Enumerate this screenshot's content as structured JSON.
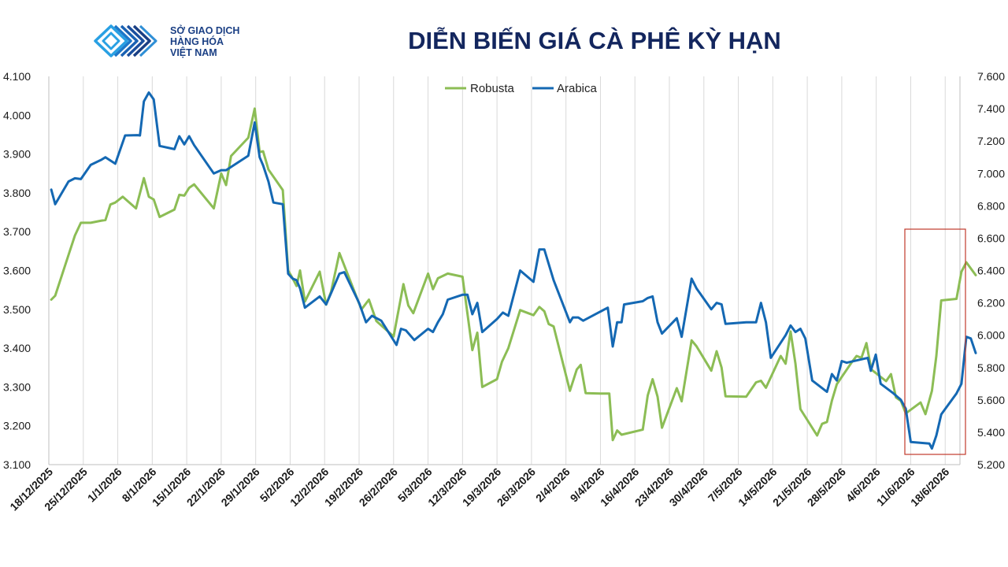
{
  "logo": {
    "line1": "SỞ GIAO DỊCH",
    "line2": "HÀNG HÓA",
    "line3": "VIỆT NAM",
    "mark": "chevron-logo-icon"
  },
  "colors": {
    "robusta": "#8cbd55",
    "arabica": "#1468b3",
    "title": "#13265e",
    "highlight": "#c0392b",
    "grid": "#d9d9d9"
  },
  "chart_data": {
    "type": "line",
    "title": "DIỄN BIẾN GIÁ CÀ PHÊ KỲ HẠN",
    "xlabel": "",
    "ylabel": "",
    "y_left": {
      "min": 3100,
      "max": 4100,
      "step": 100,
      "tick_labels": [
        "3.100",
        "3.200",
        "3.300",
        "3.400",
        "3.500",
        "3.600",
        "3.700",
        "3.800",
        "3.900",
        "4.000",
        "4.100"
      ]
    },
    "y_right": {
      "min": 5200,
      "max": 7600,
      "step": 200,
      "tick_labels": [
        "5.200",
        "5.400",
        "5.600",
        "5.800",
        "6.000",
        "6.200",
        "6.400",
        "6.600",
        "6.800",
        "7.000",
        "7.200",
        "7.400",
        "7.600"
      ]
    },
    "x_range_days": [
      0,
      185
    ],
    "x_ticks": [
      "18/12/2025",
      "25/12/2025",
      "1/1/2026",
      "8/1/2026",
      "15/1/2026",
      "22/1/2026",
      "29/1/2026",
      "5/2/2026",
      "12/2/2026",
      "19/2/2026",
      "26/2/2026",
      "5/3/2026",
      "12/3/2026",
      "19/3/2026",
      "26/3/2026",
      "2/4/2026",
      "9/4/2026",
      "16/4/2026",
      "23/4/2026",
      "30/4/2026",
      "7/5/2026",
      "14/5/2026",
      "21/5/2026",
      "28/5/2026",
      "4/6/2026",
      "11/6/2026",
      "18/6/2026"
    ],
    "legend": {
      "placement": "top-center"
    },
    "grid": {
      "vertical": true,
      "horizontal": false
    },
    "series": [
      {
        "name": "Robusta",
        "axis": "left",
        "color": "#8cbd55",
        "points": [
          [
            0.5,
            3525
          ],
          [
            1.3,
            3535
          ],
          [
            4,
            3640
          ],
          [
            5.3,
            3690
          ],
          [
            6.5,
            3723
          ],
          [
            7.5,
            3723
          ],
          [
            8.5,
            3723
          ],
          [
            10.5,
            3728
          ],
          [
            11.5,
            3730
          ],
          [
            12.5,
            3770
          ],
          [
            13.5,
            3775
          ],
          [
            15,
            3790
          ],
          [
            17.7,
            3760
          ],
          [
            19.3,
            3838
          ],
          [
            20.3,
            3790
          ],
          [
            21.3,
            3783
          ],
          [
            22.5,
            3738
          ],
          [
            25.5,
            3757
          ],
          [
            26.5,
            3795
          ],
          [
            27.5,
            3793
          ],
          [
            28.5,
            3813
          ],
          [
            29.5,
            3822
          ],
          [
            33.5,
            3760
          ],
          [
            35,
            3850
          ],
          [
            36,
            3820
          ],
          [
            37,
            3895
          ],
          [
            40.5,
            3942
          ],
          [
            41.8,
            4017
          ],
          [
            42.8,
            3905
          ],
          [
            43.5,
            3907
          ],
          [
            44.6,
            3860
          ],
          [
            47.5,
            3807
          ],
          [
            48.6,
            3600
          ],
          [
            49.5,
            3580
          ],
          [
            50.3,
            3560
          ],
          [
            51,
            3600
          ],
          [
            52,
            3520
          ],
          [
            55,
            3597
          ],
          [
            56.3,
            3512
          ],
          [
            57.3,
            3545
          ],
          [
            59,
            3645
          ],
          [
            63,
            3515
          ],
          [
            63.5,
            3500
          ],
          [
            65,
            3525
          ],
          [
            66.5,
            3470
          ],
          [
            70,
            3430
          ],
          [
            72,
            3565
          ],
          [
            73,
            3510
          ],
          [
            74,
            3490
          ],
          [
            77,
            3592
          ],
          [
            78,
            3552
          ],
          [
            79,
            3580
          ],
          [
            81,
            3592
          ],
          [
            84,
            3584
          ],
          [
            86,
            3395
          ],
          [
            87,
            3440
          ],
          [
            88,
            3300
          ],
          [
            91,
            3320
          ],
          [
            92,
            3365
          ],
          [
            93.3,
            3400
          ],
          [
            95.7,
            3498
          ],
          [
            98.4,
            3485
          ],
          [
            99.6,
            3506
          ],
          [
            100.6,
            3495
          ],
          [
            101.5,
            3462
          ],
          [
            102.5,
            3456
          ],
          [
            105.8,
            3290
          ],
          [
            107.2,
            3345
          ],
          [
            108,
            3357
          ],
          [
            109,
            3284
          ],
          [
            112,
            3283
          ],
          [
            113.5,
            3283
          ],
          [
            113.8,
            3283
          ],
          [
            114.5,
            3163
          ],
          [
            115.4,
            3188
          ],
          [
            116.3,
            3177
          ],
          [
            120.6,
            3190
          ],
          [
            121.6,
            3278
          ],
          [
            122.6,
            3320
          ],
          [
            123.6,
            3275
          ],
          [
            124.5,
            3195
          ],
          [
            127.5,
            3297
          ],
          [
            128.5,
            3263
          ],
          [
            130.5,
            3420
          ],
          [
            131.5,
            3405
          ],
          [
            134.5,
            3342
          ],
          [
            135.6,
            3392
          ],
          [
            136.6,
            3350
          ],
          [
            137.4,
            3276
          ],
          [
            141.6,
            3275
          ],
          [
            143.6,
            3312
          ],
          [
            144.6,
            3316
          ],
          [
            145.6,
            3298
          ],
          [
            148.6,
            3380
          ],
          [
            149.6,
            3360
          ],
          [
            150.6,
            3443
          ],
          [
            151.6,
            3360
          ],
          [
            152.6,
            3243
          ],
          [
            156,
            3175
          ],
          [
            157,
            3205
          ],
          [
            158,
            3210
          ],
          [
            159,
            3265
          ],
          [
            160,
            3307
          ],
          [
            163,
            3363
          ],
          [
            164,
            3380
          ],
          [
            165,
            3375
          ],
          [
            166,
            3413
          ],
          [
            167,
            3345
          ],
          [
            170,
            3315
          ],
          [
            171,
            3333
          ],
          [
            172,
            3273
          ],
          [
            173,
            3264
          ],
          [
            174,
            3232
          ],
          [
            177,
            3260
          ],
          [
            178,
            3230
          ],
          [
            179.3,
            3290
          ],
          [
            180.2,
            3380
          ],
          [
            181.2,
            3523
          ],
          [
            184.3,
            3527
          ],
          [
            185.3,
            3597
          ],
          [
            186.3,
            3621
          ],
          [
            188.2,
            3588
          ]
        ]
      },
      {
        "name": "Arabica",
        "axis": "right",
        "color": "#1468b3",
        "points": [
          [
            0.5,
            6900
          ],
          [
            1.3,
            6810
          ],
          [
            4,
            6950
          ],
          [
            5.3,
            6970
          ],
          [
            6.5,
            6965
          ],
          [
            8.5,
            7053
          ],
          [
            10.5,
            7082
          ],
          [
            11.5,
            7100
          ],
          [
            13.5,
            7060
          ],
          [
            15.5,
            7235
          ],
          [
            18,
            7237
          ],
          [
            18.5,
            7235
          ],
          [
            19.3,
            7445
          ],
          [
            20.3,
            7500
          ],
          [
            21.3,
            7458
          ],
          [
            22.5,
            7170
          ],
          [
            25.5,
            7150
          ],
          [
            26.5,
            7230
          ],
          [
            27.5,
            7180
          ],
          [
            28.5,
            7230
          ],
          [
            29.5,
            7175
          ],
          [
            33.5,
            7000
          ],
          [
            35,
            7020
          ],
          [
            36,
            7020
          ],
          [
            40.5,
            7110
          ],
          [
            41.8,
            7315
          ],
          [
            42.8,
            7100
          ],
          [
            43.5,
            7050
          ],
          [
            44.6,
            6950
          ],
          [
            45.6,
            6820
          ],
          [
            47.5,
            6810
          ],
          [
            48.6,
            6380
          ],
          [
            49.5,
            6350
          ],
          [
            50.3,
            6340
          ],
          [
            51,
            6290
          ],
          [
            52,
            6170
          ],
          [
            55,
            6240
          ],
          [
            56.3,
            6190
          ],
          [
            57.3,
            6260
          ],
          [
            59,
            6380
          ],
          [
            60,
            6390
          ],
          [
            63,
            6200
          ],
          [
            64.4,
            6080
          ],
          [
            65.6,
            6120
          ],
          [
            67.5,
            6090
          ],
          [
            70.6,
            5940
          ],
          [
            71.5,
            6040
          ],
          [
            72.5,
            6030
          ],
          [
            74.2,
            5970
          ],
          [
            77,
            6040
          ],
          [
            78,
            6020
          ],
          [
            79,
            6080
          ],
          [
            80,
            6130
          ],
          [
            81,
            6220
          ],
          [
            84,
            6250
          ],
          [
            85,
            6250
          ],
          [
            86,
            6130
          ],
          [
            87,
            6200
          ],
          [
            88,
            6020
          ],
          [
            91,
            6100
          ],
          [
            92.2,
            6140
          ],
          [
            93.3,
            6120
          ],
          [
            95.7,
            6400
          ],
          [
            98.4,
            6330
          ],
          [
            99.6,
            6530
          ],
          [
            100.6,
            6530
          ],
          [
            102.5,
            6340
          ],
          [
            105.8,
            6080
          ],
          [
            106.4,
            6110
          ],
          [
            107.5,
            6110
          ],
          [
            108.5,
            6090
          ],
          [
            113.5,
            6170
          ],
          [
            114.5,
            5930
          ],
          [
            115.4,
            6080
          ],
          [
            116.3,
            6080
          ],
          [
            116.8,
            6190
          ],
          [
            120.6,
            6210
          ],
          [
            121.6,
            6230
          ],
          [
            122.6,
            6240
          ],
          [
            123.6,
            6080
          ],
          [
            124.5,
            6010
          ],
          [
            127.5,
            6105
          ],
          [
            128.5,
            5990
          ],
          [
            130.5,
            6350
          ],
          [
            131.5,
            6290
          ],
          [
            134.5,
            6160
          ],
          [
            135.6,
            6200
          ],
          [
            136.6,
            6190
          ],
          [
            137.4,
            6070
          ],
          [
            141.6,
            6080
          ],
          [
            143.6,
            6080
          ],
          [
            144.6,
            6200
          ],
          [
            145.6,
            6080
          ],
          [
            146.6,
            5860
          ],
          [
            149.6,
            6000
          ],
          [
            150.6,
            6060
          ],
          [
            151.6,
            6020
          ],
          [
            152.6,
            6040
          ],
          [
            153.6,
            5980
          ],
          [
            155,
            5720
          ],
          [
            158,
            5650
          ],
          [
            159,
            5760
          ],
          [
            160,
            5720
          ],
          [
            161,
            5840
          ],
          [
            162,
            5830
          ],
          [
            166.3,
            5860
          ],
          [
            166.9,
            5780
          ],
          [
            167.9,
            5880
          ],
          [
            168.9,
            5700
          ],
          [
            171.5,
            5640
          ],
          [
            173,
            5600
          ],
          [
            174,
            5545
          ],
          [
            175,
            5340
          ],
          [
            178.8,
            5330
          ],
          [
            179.3,
            5300
          ],
          [
            180.2,
            5380
          ],
          [
            181.2,
            5510
          ],
          [
            184.3,
            5640
          ],
          [
            185.3,
            5700
          ],
          [
            186.3,
            5990
          ],
          [
            187.2,
            5980
          ],
          [
            188.2,
            5890
          ]
        ]
      }
    ]
  }
}
